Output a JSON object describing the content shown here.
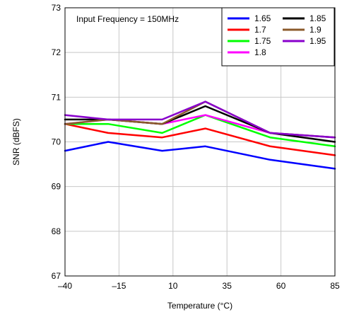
{
  "chart_data": {
    "type": "line",
    "annotation": "Input Frequency = 150MHz",
    "xlabel": "Temperature (°C)",
    "ylabel": "SNR (dBFS)",
    "xlim": [
      -40,
      85
    ],
    "ylim": [
      67,
      73
    ],
    "xticks": [
      -40,
      -15,
      10,
      35,
      60,
      85
    ],
    "xtick_labels": [
      "–40",
      "–15",
      "10",
      "35",
      "60",
      "85"
    ],
    "yticks": [
      67,
      68,
      69,
      70,
      71,
      72,
      73
    ],
    "ytick_labels": [
      "67",
      "68",
      "69",
      "70",
      "71",
      "72",
      "73"
    ],
    "grid": true,
    "legend_position": "top-right",
    "x": [
      -40,
      -20,
      5,
      25,
      55,
      85
    ],
    "series": [
      {
        "name": "1.65",
        "color": "#0000ff",
        "values": [
          69.8,
          70.0,
          69.8,
          69.9,
          69.6,
          69.4
        ]
      },
      {
        "name": "1.7",
        "color": "#ff0000",
        "values": [
          70.4,
          70.2,
          70.1,
          70.3,
          69.9,
          69.7
        ]
      },
      {
        "name": "1.75",
        "color": "#00ff00",
        "values": [
          70.4,
          70.4,
          70.2,
          70.6,
          70.1,
          69.9
        ]
      },
      {
        "name": "1.8",
        "color": "#ff00ff",
        "values": [
          70.4,
          70.5,
          70.4,
          70.6,
          70.2,
          70.1
        ]
      },
      {
        "name": "1.85",
        "color": "#000000",
        "values": [
          70.5,
          70.5,
          70.4,
          70.8,
          70.2,
          70.0
        ]
      },
      {
        "name": "1.9",
        "color": "#8b5a2b",
        "values": [
          70.4,
          70.5,
          70.4,
          70.9,
          70.2,
          70.1
        ]
      },
      {
        "name": "1.95",
        "color": "#8800cc",
        "values": [
          70.6,
          70.5,
          70.5,
          70.9,
          70.2,
          70.1
        ]
      }
    ]
  }
}
